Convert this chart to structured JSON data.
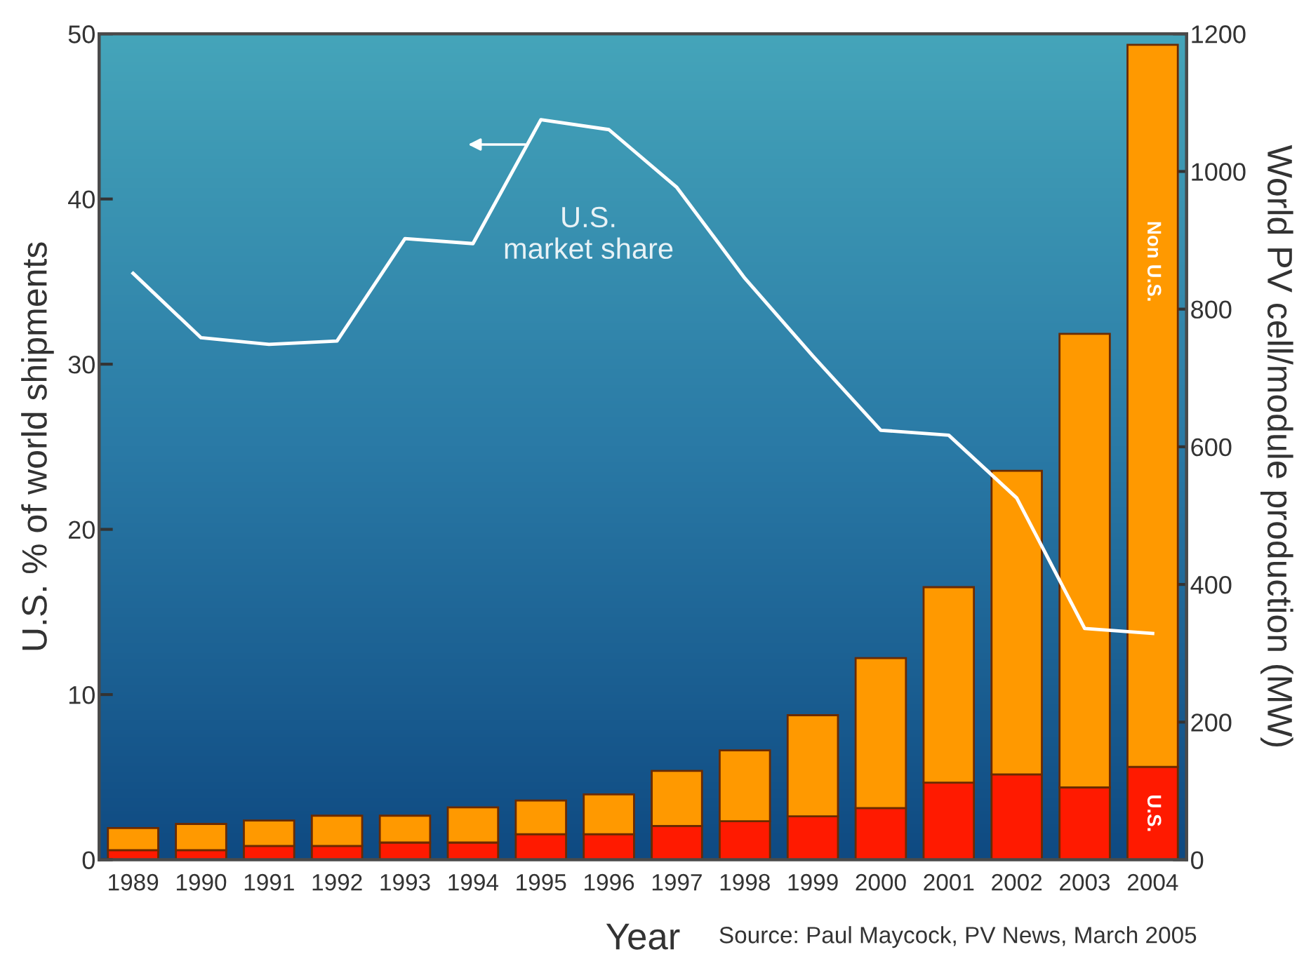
{
  "chart_data": {
    "type": "bar",
    "stacked": true,
    "xlabel": "Year",
    "ylabel": "U.S. % of world shipments",
    "y2label": "World PV cell/module production (MW)",
    "categories": [
      "1989",
      "1990",
      "1991",
      "1992",
      "1993",
      "1994",
      "1995",
      "1996",
      "1997",
      "1998",
      "1999",
      "2000",
      "2001",
      "2002",
      "2003",
      "2004"
    ],
    "series": [
      {
        "name": "U.S.",
        "axis": "y2",
        "color": "#ff1a00",
        "values": [
          14,
          14,
          20,
          20,
          25,
          25,
          37,
          37,
          49,
          56,
          63,
          75,
          112,
          124,
          105,
          135
        ]
      },
      {
        "name": "Non U.S.",
        "axis": "y2",
        "color": "#ff9900",
        "values": [
          32,
          38,
          37,
          44,
          39,
          51,
          49,
          58,
          80,
          103,
          147,
          218,
          284,
          441,
          659,
          1049
        ]
      },
      {
        "name": "U.S.\nmarket share",
        "type": "line",
        "axis": "y",
        "color": "#ffffff",
        "values": [
          35.5,
          31.6,
          31.2,
          31.4,
          37.6,
          37.3,
          44.8,
          44.2,
          40.7,
          35.2,
          30.5,
          26.0,
          25.7,
          21.9,
          14.0,
          13.7
        ]
      }
    ],
    "ylim": [
      0,
      50
    ],
    "yticks": [
      0,
      10,
      20,
      30,
      40,
      50
    ],
    "y2lim": [
      0,
      1200
    ],
    "y2ticks": [
      0,
      200,
      400,
      600,
      800,
      1000,
      1200
    ],
    "annotations": [
      "Source: Paul Maycock, PV News, March 2005"
    ],
    "grid": false,
    "legend": false,
    "marker": "none",
    "line_style": "solid"
  }
}
